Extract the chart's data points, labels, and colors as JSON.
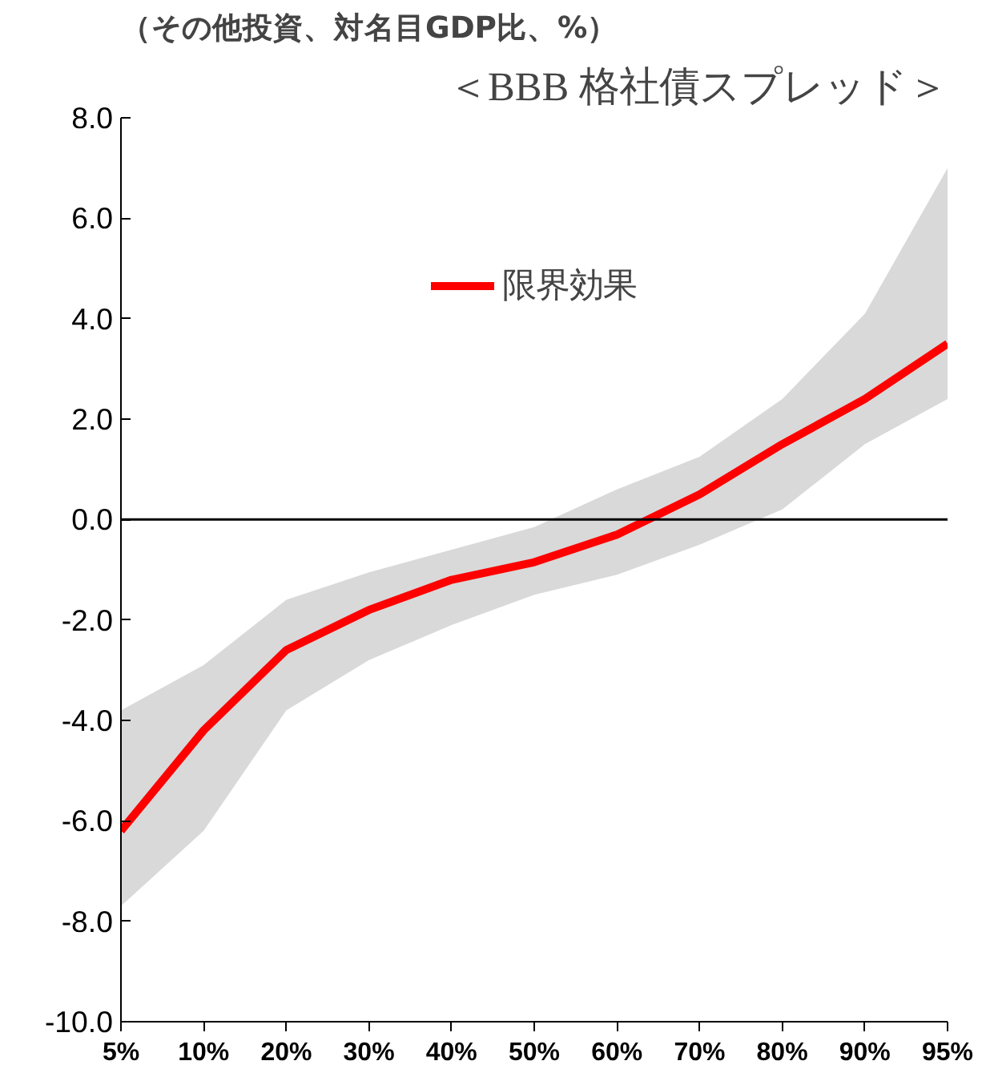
{
  "chart_data": {
    "type": "line",
    "title": "＜BBB 格社債スプレッド＞",
    "ylabel": "（その他投資、対名目GDP比、%）",
    "categories": [
      "5%",
      "10%",
      "20%",
      "30%",
      "40%",
      "50%",
      "60%",
      "70%",
      "80%",
      "90%",
      "95%"
    ],
    "series": [
      {
        "name": "限界効果",
        "color": "#ff0000",
        "values": [
          -6.2,
          -4.2,
          -2.6,
          -1.8,
          -1.2,
          -0.85,
          -0.3,
          0.5,
          1.5,
          2.4,
          3.5
        ],
        "lower": [
          -7.7,
          -6.2,
          -3.8,
          -2.8,
          -2.1,
          -1.5,
          -1.1,
          -0.5,
          0.2,
          1.5,
          2.4
        ],
        "upper": [
          -3.8,
          -2.9,
          -1.6,
          -1.05,
          -0.6,
          -0.15,
          0.6,
          1.25,
          2.4,
          4.1,
          7.0
        ]
      }
    ],
    "ylim": [
      -10,
      8
    ],
    "yticks": [
      {
        "value": -10,
        "label": "-10.0"
      },
      {
        "value": -8,
        "label": "-8.0"
      },
      {
        "value": -6,
        "label": "-6.0"
      },
      {
        "value": -4,
        "label": "-4.0"
      },
      {
        "value": -2,
        "label": "-2.0"
      },
      {
        "value": 0,
        "label": "0.0"
      },
      {
        "value": 2,
        "label": "2.0"
      },
      {
        "value": 4,
        "label": "4.0"
      },
      {
        "value": 6,
        "label": "6.0"
      },
      {
        "value": 8,
        "label": "8.0"
      }
    ],
    "ref_lines": [
      {
        "axis": "y",
        "value": 0,
        "color": "#000000"
      }
    ],
    "grid": false,
    "legend": "top",
    "marker": "none",
    "line_style": "solid"
  }
}
